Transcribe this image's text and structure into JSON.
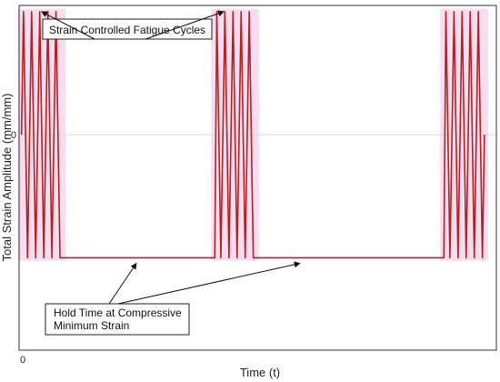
{
  "chart_data": {
    "type": "line",
    "xlabel": "Time (t)",
    "ylabel": "Total Strain Amplitude (mm/mm)",
    "x_tick_labels": [
      {
        "value": 0,
        "label": "0"
      }
    ],
    "y_tick_labels": [
      {
        "value": 0,
        "label": "0"
      }
    ],
    "xlim": [
      0,
      100
    ],
    "ylim": [
      -1.75,
      1.05
    ],
    "grid": false,
    "legend": "none",
    "series": [
      {
        "color": "#b22222",
        "band_color": "#f6d2ec",
        "amplitude": 1,
        "hold_value": -1,
        "cycles_per_block": 5,
        "blocks": [
          {
            "cycle_start": 0.5,
            "cycle_end": 9.0,
            "hold_end": 41.0
          },
          {
            "cycle_start": 41.0,
            "cycle_end": 49.5,
            "hold_end": 89.0
          },
          {
            "cycle_start": 89.0,
            "cycle_end": 97.5,
            "hold_end": null
          }
        ]
      }
    ],
    "annotations": [
      {
        "text": "Strain Controlled Fatigue Cycles",
        "targets": "tops of the first and second fatigue cycle blocks"
      },
      {
        "text": "Hold Time at Compressive Minimum Strain",
        "targets": "first and second compressive hold segments"
      }
    ]
  }
}
